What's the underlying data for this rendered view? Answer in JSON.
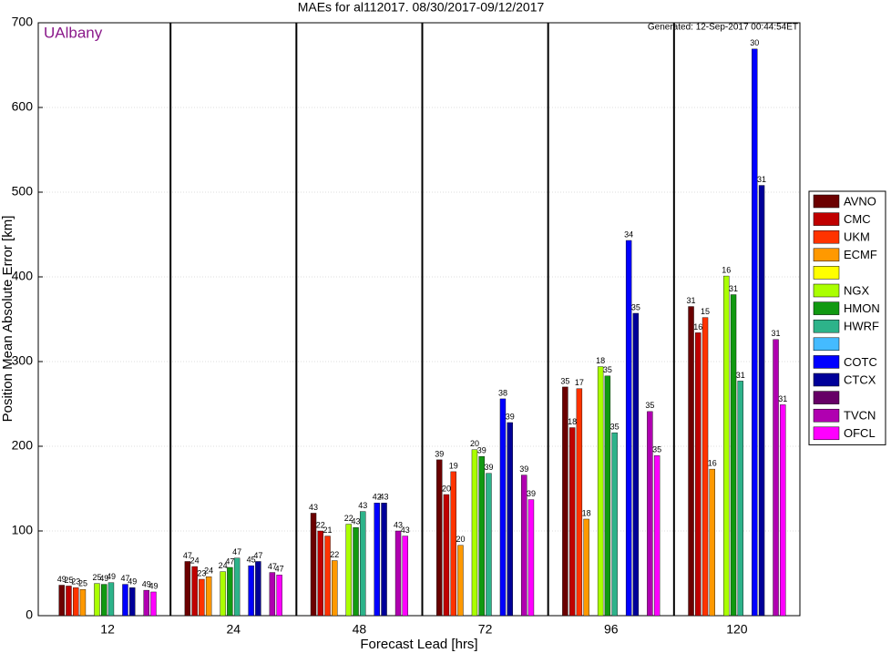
{
  "chart_data": {
    "type": "bar",
    "title": "MAEs for al112017. 08/30/2017-09/12/2017",
    "watermark": "UAlbany",
    "generated": "Generated: 12-Sep-2017 00:44:54ET",
    "x_label": "Forecast Lead [hrs]",
    "y_label": "Position Mean Absolute Error [km]",
    "categories": [
      "12",
      "24",
      "48",
      "72",
      "96",
      "120"
    ],
    "ylim": [
      0,
      700
    ],
    "yticks": [
      0,
      100,
      200,
      300,
      400,
      500,
      600,
      700
    ],
    "grid": true,
    "series": [
      {
        "name": "AVNO",
        "color": "#6b0000",
        "values": [
          36,
          64,
          121,
          184,
          270,
          365
        ],
        "counts": [
          49,
          47,
          43,
          39,
          35,
          31
        ]
      },
      {
        "name": "CMC",
        "color": "#c00000",
        "values": [
          35,
          58,
          100,
          143,
          222,
          334
        ],
        "counts": [
          25,
          24,
          22,
          20,
          18,
          16
        ]
      },
      {
        "name": "UKM",
        "color": "#ff3300",
        "values": [
          33,
          43,
          94,
          170,
          268,
          352
        ],
        "counts": [
          23,
          23,
          21,
          19,
          17,
          15
        ]
      },
      {
        "name": "ECMF",
        "color": "#ff9900",
        "values": [
          31,
          46,
          65,
          83,
          114,
          173
        ],
        "counts": [
          25,
          24,
          22,
          20,
          18,
          16
        ]
      },
      {
        "color": "#ffff00",
        "values": [
          null,
          null,
          null,
          null,
          null,
          null
        ]
      },
      {
        "name": "NGX",
        "color": "#aaff00",
        "values": [
          38,
          52,
          108,
          196,
          294,
          401
        ],
        "counts": [
          25,
          24,
          22,
          20,
          18,
          16
        ]
      },
      {
        "name": "HMON",
        "color": "#119911",
        "values": [
          37,
          57,
          104,
          188,
          283,
          379
        ],
        "counts": [
          49,
          47,
          43,
          39,
          35,
          31
        ]
      },
      {
        "name": "HWRF",
        "color": "#2db38a",
        "values": [
          39,
          68,
          123,
          168,
          216,
          277
        ],
        "counts": [
          49,
          47,
          43,
          39,
          35,
          31
        ]
      },
      {
        "color": "#44bbff",
        "values": [
          null,
          null,
          null,
          null,
          null,
          null
        ]
      },
      {
        "name": "COTC",
        "color": "#0000ff",
        "values": [
          37,
          59,
          133,
          256,
          443,
          669
        ],
        "counts": [
          47,
          45,
          42,
          38,
          34,
          30
        ]
      },
      {
        "name": "CTCX",
        "color": "#000099",
        "values": [
          33,
          64,
          133,
          228,
          357,
          508
        ],
        "counts": [
          49,
          47,
          43,
          39,
          35,
          31
        ]
      },
      {
        "color": "#660066",
        "values": [
          null,
          null,
          null,
          null,
          null,
          null
        ]
      },
      {
        "name": "TVCN",
        "color": "#b000b0",
        "values": [
          30,
          51,
          100,
          166,
          241,
          326
        ],
        "counts": [
          49,
          47,
          43,
          39,
          35,
          31
        ]
      },
      {
        "name": "OFCL",
        "color": "#ff00ff",
        "values": [
          28,
          48,
          94,
          137,
          189,
          249
        ],
        "counts": [
          49,
          47,
          43,
          39,
          35,
          31
        ]
      }
    ]
  }
}
